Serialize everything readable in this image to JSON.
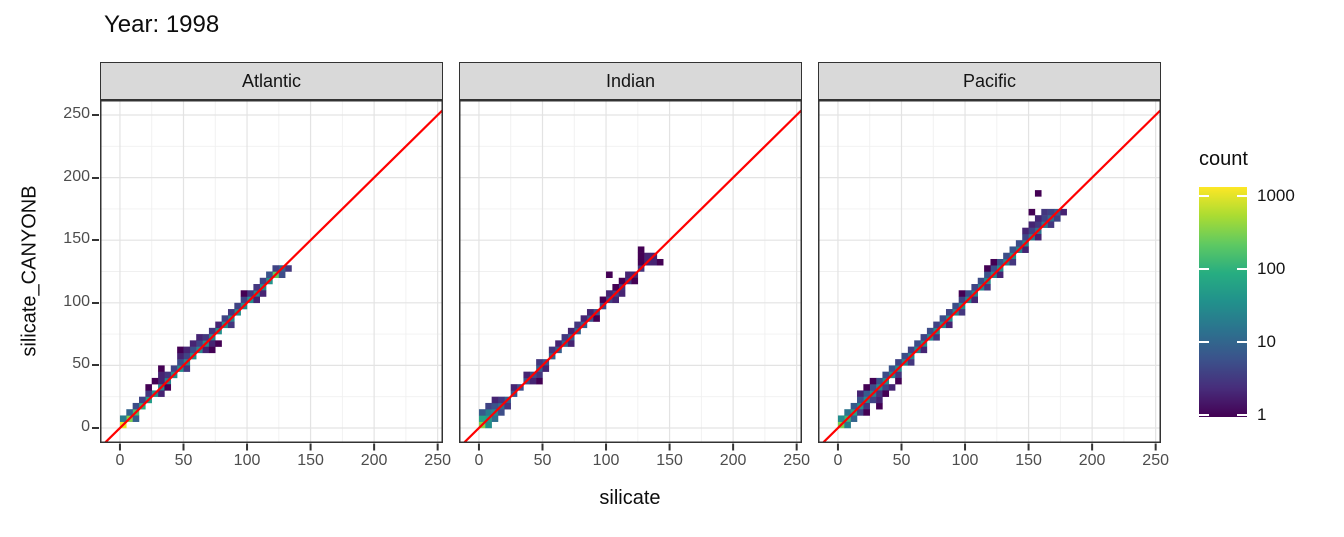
{
  "title": "Year: 1998",
  "axes": {
    "x_label": "silicate",
    "y_label": "silicate_CANYONB"
  },
  "chart_data": {
    "type": "heatmap",
    "geom": "bin2d",
    "binwidth": 5,
    "title": "Year: 1998",
    "xlabel": "silicate",
    "ylabel": "silicate_CANYONB",
    "xlim": [
      -15.7,
      254.2
    ],
    "ylim": [
      -12,
      262
    ],
    "x_ticks": [
      0,
      50,
      100,
      150,
      200,
      250
    ],
    "y_ticks": [
      0,
      50,
      100,
      150,
      200,
      250
    ],
    "minor_gridlines": [
      25,
      75,
      125,
      175,
      225
    ],
    "grid": "major+minor",
    "reference_line": {
      "equation": "y = x",
      "color": "#ff0000"
    },
    "color_scale": {
      "name": "viridis",
      "transform": "log10",
      "domain": [
        1,
        1000
      ],
      "stops": [
        "#440154",
        "#472d7b",
        "#3b528b",
        "#2c728e",
        "#21918c",
        "#27ad81",
        "#5ec962",
        "#aadc32",
        "#fde725"
      ]
    },
    "legend": {
      "title": "count",
      "position": "right",
      "tick_values": [
        1000,
        100,
        10,
        1
      ],
      "tick_labels": [
        "1000",
        "100",
        "10",
        "1"
      ]
    },
    "facets": [
      {
        "label": "Atlantic",
        "bins": [
          [
            0,
            0,
            850
          ],
          [
            5,
            5,
            260
          ],
          [
            10,
            10,
            130
          ],
          [
            15,
            15,
            80
          ],
          [
            20,
            20,
            45
          ],
          [
            25,
            25,
            30
          ],
          [
            30,
            30,
            25
          ],
          [
            35,
            35,
            22
          ],
          [
            40,
            40,
            26
          ],
          [
            45,
            45,
            30
          ],
          [
            50,
            50,
            26
          ],
          [
            55,
            55,
            30
          ],
          [
            60,
            60,
            24
          ],
          [
            65,
            65,
            28
          ],
          [
            70,
            70,
            24
          ],
          [
            75,
            75,
            30
          ],
          [
            80,
            80,
            28
          ],
          [
            85,
            85,
            24
          ],
          [
            90,
            90,
            30
          ],
          [
            95,
            95,
            26
          ],
          [
            100,
            100,
            28
          ],
          [
            105,
            105,
            24
          ],
          [
            110,
            110,
            28
          ],
          [
            115,
            115,
            34
          ],
          [
            120,
            120,
            180
          ],
          [
            125,
            125,
            9
          ],
          [
            0,
            5,
            18
          ],
          [
            5,
            10,
            9
          ],
          [
            10,
            15,
            5
          ],
          [
            15,
            20,
            4
          ],
          [
            20,
            25,
            3
          ],
          [
            30,
            35,
            2
          ],
          [
            35,
            40,
            3
          ],
          [
            40,
            45,
            4
          ],
          [
            45,
            50,
            5
          ],
          [
            50,
            55,
            4
          ],
          [
            55,
            60,
            5
          ],
          [
            60,
            65,
            4
          ],
          [
            65,
            70,
            3
          ],
          [
            70,
            75,
            3
          ],
          [
            80,
            85,
            4
          ],
          [
            85,
            90,
            3
          ],
          [
            90,
            95,
            4
          ],
          [
            95,
            100,
            4
          ],
          [
            100,
            105,
            3
          ],
          [
            105,
            110,
            3
          ],
          [
            110,
            115,
            4
          ],
          [
            115,
            120,
            6
          ],
          [
            120,
            125,
            4
          ],
          [
            10,
            5,
            8
          ],
          [
            30,
            25,
            2
          ],
          [
            50,
            45,
            3
          ],
          [
            65,
            60,
            2
          ],
          [
            85,
            80,
            3
          ],
          [
            105,
            100,
            2
          ],
          [
            125,
            120,
            5
          ],
          [
            130,
            125,
            3
          ],
          [
            25,
            35,
            1
          ],
          [
            30,
            40,
            2
          ],
          [
            30,
            45,
            1
          ],
          [
            20,
            30,
            1
          ],
          [
            45,
            55,
            2
          ],
          [
            45,
            60,
            1
          ],
          [
            50,
            60,
            2
          ],
          [
            55,
            65,
            2
          ],
          [
            60,
            70,
            2
          ],
          [
            70,
            65,
            2
          ],
          [
            75,
            65,
            1
          ],
          [
            70,
            60,
            1
          ],
          [
            75,
            80,
            2
          ],
          [
            95,
            105,
            1
          ],
          [
            110,
            105,
            2
          ],
          [
            35,
            30,
            1
          ]
        ]
      },
      {
        "label": "Indian",
        "bins": [
          [
            0,
            0,
            280
          ],
          [
            5,
            5,
            45
          ],
          [
            10,
            10,
            25
          ],
          [
            15,
            15,
            12
          ],
          [
            20,
            20,
            8
          ],
          [
            25,
            25,
            6
          ],
          [
            30,
            30,
            5
          ],
          [
            35,
            35,
            6
          ],
          [
            40,
            40,
            5
          ],
          [
            45,
            45,
            8
          ],
          [
            50,
            50,
            6
          ],
          [
            55,
            55,
            9
          ],
          [
            60,
            60,
            8
          ],
          [
            65,
            65,
            10
          ],
          [
            70,
            70,
            8
          ],
          [
            75,
            75,
            9
          ],
          [
            80,
            80,
            8
          ],
          [
            85,
            85,
            6
          ],
          [
            90,
            90,
            6
          ],
          [
            95,
            95,
            5
          ],
          [
            100,
            100,
            4
          ],
          [
            105,
            105,
            4
          ],
          [
            110,
            110,
            3
          ],
          [
            115,
            115,
            3
          ],
          [
            120,
            120,
            2
          ],
          [
            125,
            125,
            3
          ],
          [
            130,
            130,
            2
          ],
          [
            135,
            135,
            2
          ],
          [
            0,
            5,
            60
          ],
          [
            5,
            10,
            18
          ],
          [
            0,
            10,
            7
          ],
          [
            10,
            15,
            6
          ],
          [
            5,
            15,
            4
          ],
          [
            15,
            20,
            3
          ],
          [
            10,
            20,
            2
          ],
          [
            25,
            30,
            2
          ],
          [
            35,
            40,
            2
          ],
          [
            45,
            50,
            3
          ],
          [
            55,
            60,
            3
          ],
          [
            60,
            65,
            2
          ],
          [
            65,
            70,
            3
          ],
          [
            70,
            75,
            2
          ],
          [
            75,
            80,
            3
          ],
          [
            80,
            85,
            2
          ],
          [
            85,
            90,
            2
          ],
          [
            95,
            100,
            1
          ],
          [
            100,
            105,
            2
          ],
          [
            110,
            115,
            1
          ],
          [
            115,
            120,
            2
          ],
          [
            125,
            130,
            1
          ],
          [
            130,
            135,
            2
          ],
          [
            5,
            0,
            30
          ],
          [
            10,
            5,
            12
          ],
          [
            15,
            10,
            5
          ],
          [
            20,
            15,
            3
          ],
          [
            40,
            35,
            2
          ],
          [
            45,
            40,
            3
          ],
          [
            50,
            45,
            2
          ],
          [
            70,
            65,
            2
          ],
          [
            90,
            85,
            1
          ],
          [
            105,
            100,
            2
          ],
          [
            110,
            105,
            2
          ],
          [
            120,
            115,
            1
          ],
          [
            135,
            130,
            2
          ],
          [
            140,
            130,
            1
          ],
          [
            45,
            35,
            1
          ],
          [
            100,
            120,
            1
          ],
          [
            105,
            110,
            1
          ],
          [
            125,
            135,
            1
          ],
          [
            125,
            140,
            1
          ]
        ]
      },
      {
        "label": "Pacific",
        "bins": [
          [
            0,
            0,
            240
          ],
          [
            5,
            5,
            110
          ],
          [
            10,
            10,
            55
          ],
          [
            15,
            15,
            30
          ],
          [
            20,
            20,
            24
          ],
          [
            25,
            25,
            20
          ],
          [
            30,
            30,
            24
          ],
          [
            35,
            35,
            28
          ],
          [
            40,
            40,
            24
          ],
          [
            45,
            45,
            28
          ],
          [
            50,
            50,
            24
          ],
          [
            55,
            55,
            20
          ],
          [
            60,
            60,
            24
          ],
          [
            65,
            65,
            28
          ],
          [
            70,
            70,
            24
          ],
          [
            75,
            75,
            28
          ],
          [
            80,
            80,
            24
          ],
          [
            85,
            85,
            28
          ],
          [
            90,
            90,
            24
          ],
          [
            95,
            95,
            28
          ],
          [
            100,
            100,
            24
          ],
          [
            105,
            105,
            20
          ],
          [
            110,
            110,
            24
          ],
          [
            115,
            115,
            28
          ],
          [
            120,
            120,
            24
          ],
          [
            125,
            125,
            28
          ],
          [
            130,
            130,
            24
          ],
          [
            135,
            135,
            28
          ],
          [
            140,
            140,
            20
          ],
          [
            145,
            145,
            24
          ],
          [
            150,
            150,
            18
          ],
          [
            155,
            155,
            14
          ],
          [
            160,
            160,
            16
          ],
          [
            165,
            165,
            12
          ],
          [
            170,
            170,
            8
          ],
          [
            0,
            5,
            28
          ],
          [
            5,
            10,
            14
          ],
          [
            10,
            15,
            7
          ],
          [
            15,
            20,
            6
          ],
          [
            20,
            25,
            7
          ],
          [
            25,
            30,
            5
          ],
          [
            30,
            35,
            6
          ],
          [
            35,
            40,
            5
          ],
          [
            40,
            45,
            6
          ],
          [
            45,
            50,
            4
          ],
          [
            50,
            55,
            5
          ],
          [
            55,
            60,
            4
          ],
          [
            60,
            65,
            5
          ],
          [
            65,
            70,
            4
          ],
          [
            70,
            75,
            5
          ],
          [
            75,
            80,
            4
          ],
          [
            80,
            85,
            5
          ],
          [
            85,
            90,
            4
          ],
          [
            90,
            95,
            5
          ],
          [
            95,
            100,
            4
          ],
          [
            100,
            105,
            5
          ],
          [
            105,
            110,
            4
          ],
          [
            110,
            115,
            5
          ],
          [
            115,
            120,
            6
          ],
          [
            120,
            125,
            5
          ],
          [
            125,
            130,
            6
          ],
          [
            130,
            135,
            5
          ],
          [
            135,
            140,
            6
          ],
          [
            140,
            145,
            5
          ],
          [
            145,
            150,
            4
          ],
          [
            150,
            155,
            4
          ],
          [
            155,
            160,
            3
          ],
          [
            160,
            165,
            4
          ],
          [
            165,
            170,
            4
          ],
          [
            5,
            0,
            18
          ],
          [
            10,
            5,
            9
          ],
          [
            15,
            10,
            4
          ],
          [
            20,
            15,
            3
          ],
          [
            25,
            20,
            4
          ],
          [
            30,
            25,
            3
          ],
          [
            35,
            30,
            4
          ],
          [
            45,
            40,
            3
          ],
          [
            55,
            50,
            3
          ],
          [
            65,
            60,
            2
          ],
          [
            75,
            70,
            3
          ],
          [
            85,
            80,
            2
          ],
          [
            95,
            90,
            3
          ],
          [
            105,
            100,
            2
          ],
          [
            115,
            110,
            3
          ],
          [
            125,
            120,
            2
          ],
          [
            135,
            130,
            3
          ],
          [
            145,
            140,
            2
          ],
          [
            155,
            150,
            2
          ],
          [
            165,
            160,
            3
          ],
          [
            170,
            165,
            4
          ],
          [
            175,
            170,
            2
          ],
          [
            20,
            10,
            1
          ],
          [
            30,
            15,
            1
          ],
          [
            30,
            20,
            2
          ],
          [
            35,
            25,
            1
          ],
          [
            40,
            30,
            2
          ],
          [
            45,
            35,
            1
          ],
          [
            25,
            35,
            1
          ],
          [
            20,
            30,
            1
          ],
          [
            15,
            25,
            2
          ],
          [
            95,
            105,
            1
          ],
          [
            115,
            125,
            1
          ],
          [
            120,
            130,
            1
          ],
          [
            150,
            170,
            1
          ],
          [
            155,
            185,
            1
          ],
          [
            145,
            155,
            2
          ],
          [
            150,
            160,
            2
          ],
          [
            155,
            165,
            2
          ],
          [
            160,
            170,
            3
          ]
        ]
      }
    ]
  }
}
